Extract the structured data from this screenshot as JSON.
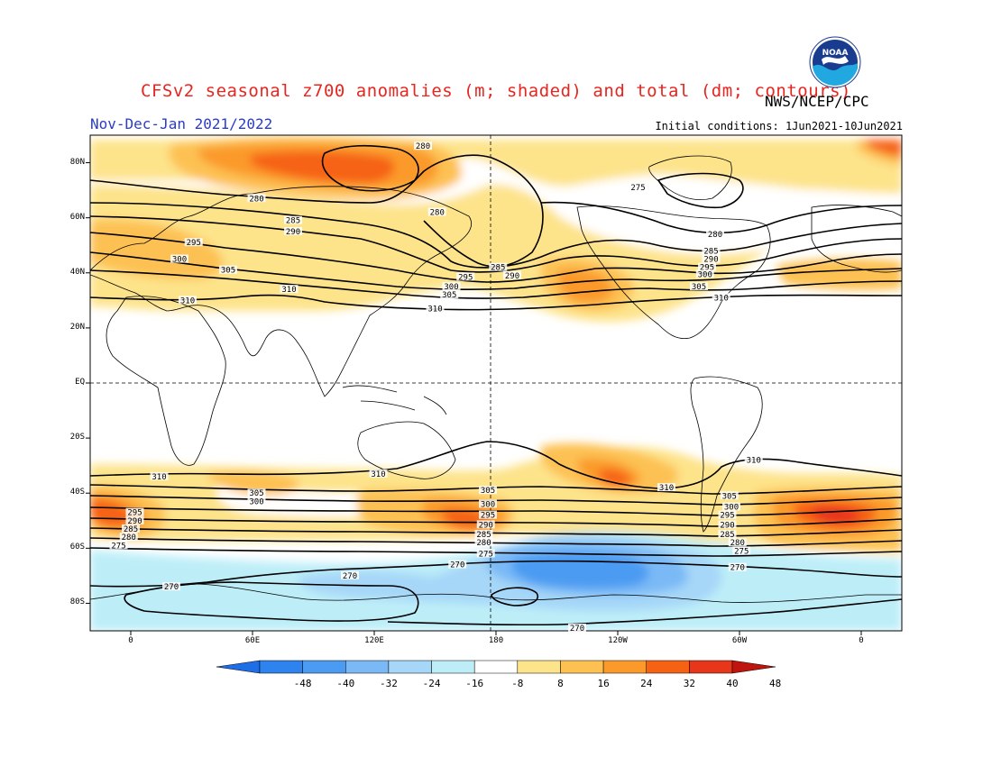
{
  "header": {
    "title": "CFSv2 seasonal z700 anomalies (m; shaded) and total (dm; contours)",
    "period": "Nov-Dec-Jan 2021/2022",
    "initial_conditions": "Initial conditions: 1Jun2021-10Jun2021",
    "agency": "NWS/NCEP/CPC",
    "logo_text": "NOAA"
  },
  "map": {
    "projection": "cylindrical equidistant",
    "lon_range": [
      -20,
      380
    ],
    "lat_range": [
      -90,
      90
    ],
    "lat_labels": [
      {
        "lat": 80,
        "text": "80N"
      },
      {
        "lat": 60,
        "text": "60N"
      },
      {
        "lat": 40,
        "text": "40N"
      },
      {
        "lat": 20,
        "text": "20N"
      },
      {
        "lat": 0,
        "text": "EQ"
      },
      {
        "lat": -20,
        "text": "20S"
      },
      {
        "lat": -40,
        "text": "40S"
      },
      {
        "lat": -60,
        "text": "60S"
      },
      {
        "lat": -80,
        "text": "80S"
      }
    ],
    "lon_labels": [
      {
        "lon": 0,
        "text": "0"
      },
      {
        "lon": 60,
        "text": "60E"
      },
      {
        "lon": 120,
        "text": "120E"
      },
      {
        "lon": 180,
        "text": "180"
      },
      {
        "lon": 240,
        "text": "120W"
      },
      {
        "lon": 300,
        "text": "60W"
      },
      {
        "lon": 360,
        "text": "0"
      }
    ],
    "contour_labels": [
      {
        "lon": 144,
        "lat": 86,
        "text": "280"
      },
      {
        "lon": 62,
        "lat": 67,
        "text": "280"
      },
      {
        "lon": 151,
        "lat": 62,
        "text": "280"
      },
      {
        "lon": 250,
        "lat": 71,
        "text": "275"
      },
      {
        "lon": 288,
        "lat": 54,
        "text": "280"
      },
      {
        "lon": 286,
        "lat": 48,
        "text": "285"
      },
      {
        "lon": 286,
        "lat": 45,
        "text": "290"
      },
      {
        "lon": 284,
        "lat": 42,
        "text": "295"
      },
      {
        "lon": 283,
        "lat": 39.5,
        "text": "300"
      },
      {
        "lon": 280,
        "lat": 35,
        "text": "305"
      },
      {
        "lon": 291,
        "lat": 31,
        "text": "310"
      },
      {
        "lon": 80,
        "lat": 59,
        "text": "285"
      },
      {
        "lon": 80,
        "lat": 55,
        "text": "290"
      },
      {
        "lon": 31,
        "lat": 51,
        "text": "295"
      },
      {
        "lon": 24,
        "lat": 45,
        "text": "300"
      },
      {
        "lon": 48,
        "lat": 41,
        "text": "305"
      },
      {
        "lon": 78,
        "lat": 34,
        "text": "310"
      },
      {
        "lon": 28,
        "lat": 30,
        "text": "310"
      },
      {
        "lon": 165,
        "lat": 38.5,
        "text": "295"
      },
      {
        "lon": 158,
        "lat": 35,
        "text": "300"
      },
      {
        "lon": 157,
        "lat": 32,
        "text": "305"
      },
      {
        "lon": 150,
        "lat": 27,
        "text": "310"
      },
      {
        "lon": 181,
        "lat": 42,
        "text": "285"
      },
      {
        "lon": 188,
        "lat": 39,
        "text": "290"
      },
      {
        "lon": 14,
        "lat": -34,
        "text": "310"
      },
      {
        "lon": 122,
        "lat": -33,
        "text": "310"
      },
      {
        "lon": 264,
        "lat": -38,
        "text": "310"
      },
      {
        "lon": 307,
        "lat": -28,
        "text": "310"
      },
      {
        "lon": 62,
        "lat": -40,
        "text": "305"
      },
      {
        "lon": 62,
        "lat": -43,
        "text": "300"
      },
      {
        "lon": 176,
        "lat": -39,
        "text": "305"
      },
      {
        "lon": 176,
        "lat": -44,
        "text": "300"
      },
      {
        "lon": 176,
        "lat": -48,
        "text": "295"
      },
      {
        "lon": 175,
        "lat": -51.5,
        "text": "290"
      },
      {
        "lon": 174,
        "lat": -55,
        "text": "285"
      },
      {
        "lon": 174,
        "lat": -58,
        "text": "280"
      },
      {
        "lon": 175,
        "lat": -62,
        "text": "275"
      },
      {
        "lon": 161,
        "lat": -66,
        "text": "270"
      },
      {
        "lon": 295,
        "lat": -41,
        "text": "305"
      },
      {
        "lon": 296,
        "lat": -45,
        "text": "300"
      },
      {
        "lon": 294,
        "lat": -48,
        "text": "295"
      },
      {
        "lon": 294,
        "lat": -51.5,
        "text": "290"
      },
      {
        "lon": 294,
        "lat": -55,
        "text": "285"
      },
      {
        "lon": 299,
        "lat": -58,
        "text": "280"
      },
      {
        "lon": 301,
        "lat": -61,
        "text": "275"
      },
      {
        "lon": 299,
        "lat": -67,
        "text": "270"
      },
      {
        "lon": 2,
        "lat": -47,
        "text": "295"
      },
      {
        "lon": 2,
        "lat": -50,
        "text": "290"
      },
      {
        "lon": 0,
        "lat": -53,
        "text": "285"
      },
      {
        "lon": -1,
        "lat": -56,
        "text": "280"
      },
      {
        "lon": -6,
        "lat": -59,
        "text": "275"
      },
      {
        "lon": 20,
        "lat": -74,
        "text": "270"
      },
      {
        "lon": 108,
        "lat": -70,
        "text": "270"
      },
      {
        "lon": 220,
        "lat": -89,
        "text": "270"
      }
    ]
  },
  "colorbar": {
    "labels": [
      "-48",
      "-40",
      "-32",
      "-24",
      "-16",
      "-8",
      "8",
      "16",
      "24",
      "32",
      "40",
      "48"
    ],
    "colors": [
      "#1e6ee8",
      "#2f83ee",
      "#4c9bf2",
      "#7ab9f6",
      "#a6d7f8",
      "#bdeef8",
      "#ffffff",
      "#fde38a",
      "#fdc152",
      "#fb9a2a",
      "#f66214",
      "#e8361a",
      "#c0150f"
    ]
  },
  "anomaly_colors": {
    "pos8": "#fde38a",
    "pos16": "#fdc152",
    "pos24": "#fb9a2a",
    "pos32": "#f66214",
    "neg8": "#bdeef8",
    "neg16": "#a6d7f8",
    "neg24": "#7ab9f6",
    "neg32": "#4c9bf2"
  }
}
